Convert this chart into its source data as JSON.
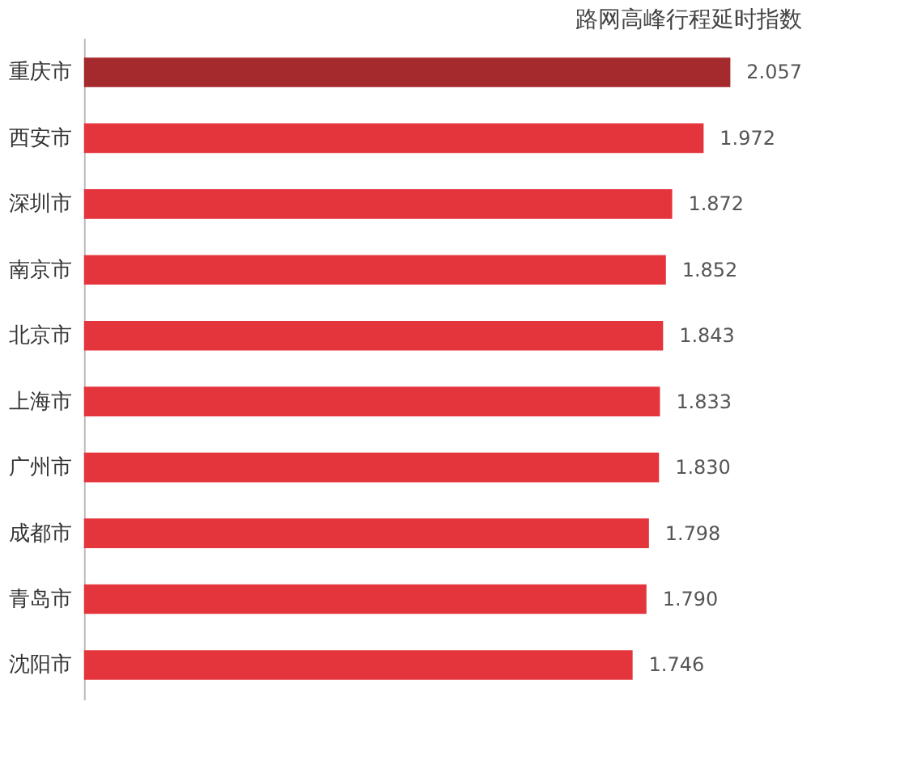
{
  "chart_data": {
    "type": "bar",
    "orientation": "horizontal",
    "title": "路网高峰行程延时指数",
    "categories": [
      "重庆市",
      "西安市",
      "深圳市",
      "南京市",
      "北京市",
      "上海市",
      "广州市",
      "成都市",
      "青岛市",
      "沈阳市"
    ],
    "values": [
      2.057,
      1.972,
      1.872,
      1.852,
      1.843,
      1.833,
      1.83,
      1.798,
      1.79,
      1.746
    ],
    "value_labels": [
      "2.057",
      "1.972",
      "1.872",
      "1.852",
      "1.843",
      "1.833",
      "1.830",
      "1.798",
      "1.790",
      "1.746"
    ],
    "colors": [
      "#a52a2e",
      "#e5353c",
      "#e5353c",
      "#e5353c",
      "#e5353c",
      "#e5353c",
      "#e5353c",
      "#e5353c",
      "#e5353c",
      "#e5353c"
    ],
    "tick_labels": "y",
    "grid": false
  }
}
